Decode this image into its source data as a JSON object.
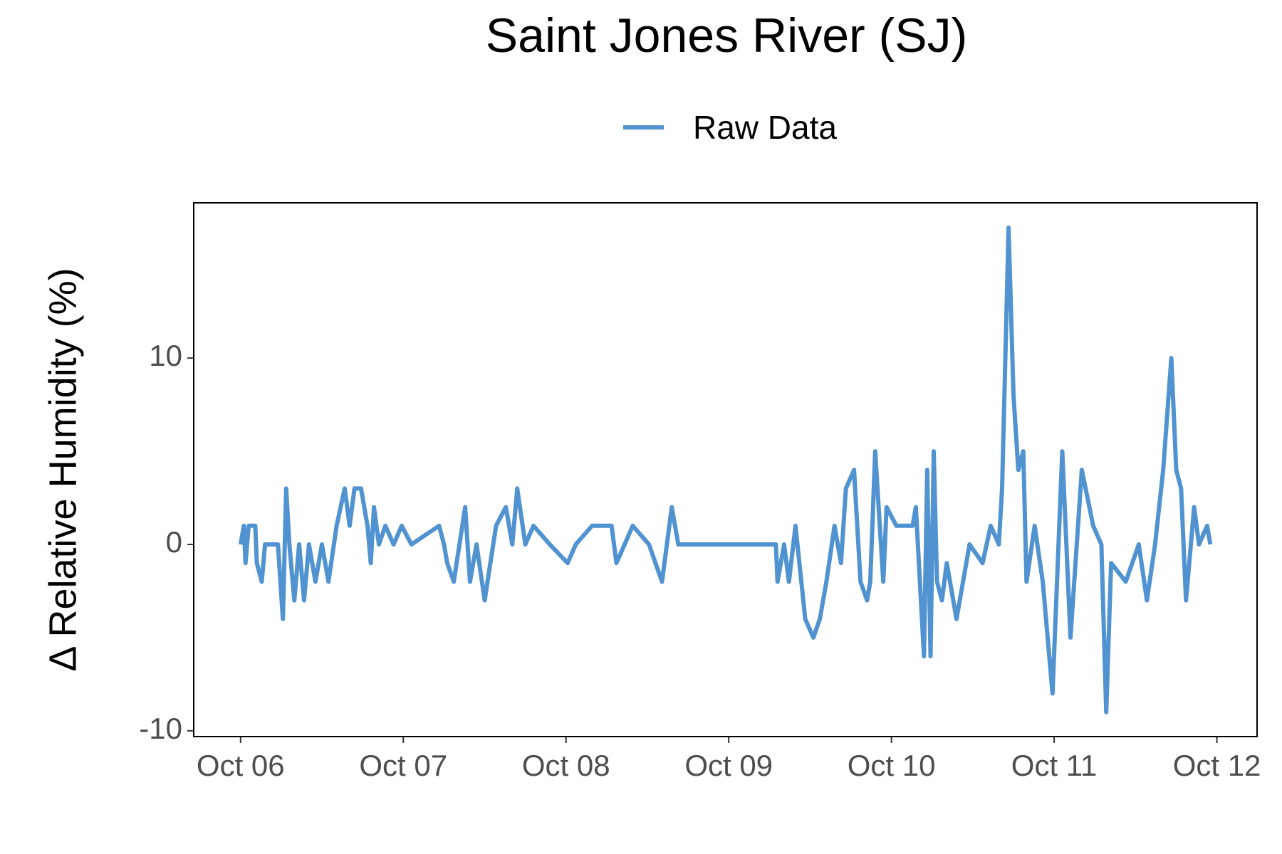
{
  "chart_data": {
    "type": "line",
    "title": "Saint Jones River (SJ)",
    "y_label": "Δ Relative Humidity (%)",
    "legend": "top",
    "x": [
      0.0,
      0.02,
      0.03,
      0.05,
      0.09,
      0.1,
      0.13,
      0.15,
      0.23,
      0.26,
      0.28,
      0.3,
      0.33,
      0.36,
      0.39,
      0.42,
      0.46,
      0.5,
      0.54,
      0.59,
      0.64,
      0.67,
      0.7,
      0.74,
      0.78,
      0.8,
      0.82,
      0.85,
      0.89,
      0.94,
      0.99,
      1.05,
      1.22,
      1.25,
      1.27,
      1.31,
      1.38,
      1.41,
      1.45,
      1.5,
      1.57,
      1.63,
      1.67,
      1.7,
      1.75,
      1.8,
      1.9,
      2.01,
      2.06,
      2.16,
      2.28,
      2.31,
      2.36,
      2.41,
      2.51,
      2.59,
      2.65,
      2.69,
      3.29,
      3.3,
      3.34,
      3.37,
      3.41,
      3.47,
      3.52,
      3.56,
      3.6,
      3.65,
      3.69,
      3.72,
      3.77,
      3.81,
      3.85,
      3.87,
      3.9,
      3.95,
      3.97,
      4.03,
      4.13,
      4.15,
      4.2,
      4.22,
      4.24,
      4.26,
      4.28,
      4.31,
      4.34,
      4.4,
      4.48,
      4.56,
      4.61,
      4.66,
      4.68,
      4.72,
      4.75,
      4.78,
      4.81,
      4.83,
      4.88,
      4.93,
      4.99,
      5.05,
      5.1,
      5.17,
      5.24,
      5.29,
      5.32,
      5.35,
      5.44,
      5.52,
      5.57,
      5.62,
      5.67,
      5.72,
      5.75,
      5.78,
      5.81,
      5.86,
      5.89,
      5.94,
      5.96
    ],
    "series": [
      {
        "name": "Raw Data",
        "color": "#5093d0",
        "values": [
          0,
          1,
          -1,
          1,
          1,
          -1,
          -2,
          0,
          0,
          -4,
          3,
          0,
          -3,
          0,
          -3,
          0,
          -2,
          0,
          -2,
          1,
          3,
          1,
          3,
          3,
          1,
          -1,
          2,
          0,
          1,
          0,
          1,
          0,
          1,
          0,
          -1,
          -2,
          2,
          -2,
          0,
          -3,
          1,
          2,
          0,
          3,
          0,
          1,
          0,
          -1,
          0,
          1,
          1,
          -1,
          0,
          1,
          0,
          -2,
          2,
          0,
          0,
          -2,
          0,
          -2,
          1,
          -4,
          -5,
          -4,
          -2,
          1,
          -1,
          3,
          4,
          -2,
          -3,
          -2,
          5,
          -2,
          2,
          1,
          1,
          2,
          -6,
          4,
          -6,
          5,
          -2,
          -3,
          -1,
          -4,
          0,
          -1,
          1,
          0,
          3,
          17,
          8,
          4,
          5,
          -2,
          1,
          -2,
          -8,
          5,
          -5,
          4,
          1,
          0,
          -9,
          -1,
          -2,
          0,
          -3,
          0,
          4,
          10,
          4,
          3,
          -3,
          2,
          0,
          1,
          0
        ]
      }
    ],
    "xlim": [
      -0.288,
      6.247
    ],
    "xticks": [
      {
        "value": 0,
        "label": "Oct 06"
      },
      {
        "value": 1,
        "label": "Oct 07"
      },
      {
        "value": 2,
        "label": "Oct 08"
      },
      {
        "value": 3,
        "label": "Oct 09"
      },
      {
        "value": 4,
        "label": "Oct 10"
      },
      {
        "value": 5,
        "label": "Oct 11"
      },
      {
        "value": 6,
        "label": "Oct 12"
      }
    ],
    "ylim": [
      -10.31,
      18.33
    ],
    "yticks": [
      -10,
      0,
      10
    ],
    "grid": false
  }
}
